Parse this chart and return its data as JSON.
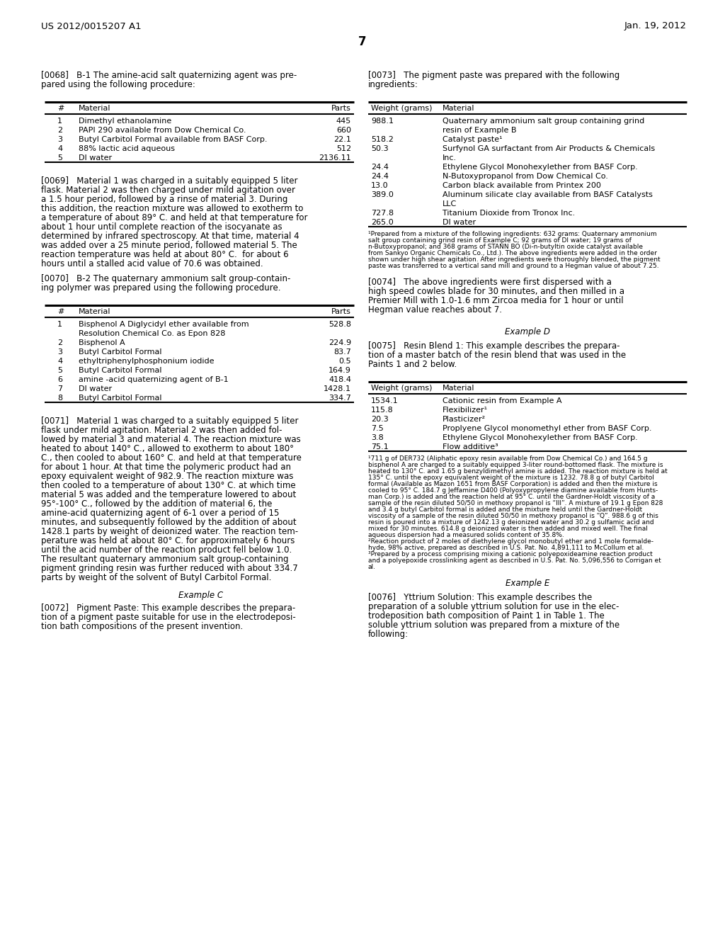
{
  "background_color": "#ffffff",
  "header_left": "US 2012/0015207 A1",
  "header_right": "Jan. 19, 2012",
  "page_number": "7",
  "left_col": {
    "para_068_lines": [
      "[0068]   B-1 The amine-acid salt quaternizing agent was pre-",
      "pared using the following procedure:"
    ],
    "table1_rows": [
      [
        "1",
        "Dimethyl ethanolamine",
        "445"
      ],
      [
        "2",
        "PAPI 290 available from Dow Chemical Co.",
        "660"
      ],
      [
        "3",
        "Butyl Carbitol Formal available from BASF Corp.",
        "22.1"
      ],
      [
        "4",
        "88% lactic acid aqueous",
        "512"
      ],
      [
        "5",
        "DI water",
        "2136.11"
      ]
    ],
    "para_069_lines": [
      "[0069]   Material 1 was charged in a suitably equipped 5 liter",
      "flask. Material 2 was then charged under mild agitation over",
      "a 1.5 hour period, followed by a rinse of material 3. During",
      "this addition, the reaction mixture was allowed to exotherm to",
      "a temperature of about 89° C. and held at that temperature for",
      "about 1 hour until complete reaction of the isocyanate as",
      "determined by infrared spectroscopy. At that time, material 4",
      "was added over a 25 minute period, followed material 5. The",
      "reaction temperature was held at about 80° C.  for about 6",
      "hours until a stalled acid value of 70.6 was obtained."
    ],
    "para_070_lines": [
      "[0070]   B-2 The quaternary ammonium salt group-contain-",
      "ing polymer was prepared using the following procedure."
    ],
    "table2_rows": [
      [
        "1",
        "Bisphenol A Diglycidyl ether available from",
        "528.8",
        "Resolution Chemical Co. as Epon 828"
      ],
      [
        "2",
        "Bisphenol A",
        "224.9",
        ""
      ],
      [
        "3",
        "Butyl Carbitol Formal",
        "83.7",
        ""
      ],
      [
        "4",
        "ethyltriphenylphosphonium iodide",
        "0.5",
        ""
      ],
      [
        "5",
        "Butyl Carbitol Formal",
        "164.9",
        ""
      ],
      [
        "6",
        "amine -acid quaternizing agent of B-1",
        "418.4",
        ""
      ],
      [
        "7",
        "DI water",
        "1428.1",
        ""
      ],
      [
        "8",
        "Butyl Carbitol Formal",
        "334.7",
        ""
      ]
    ],
    "para_071_lines": [
      "[0071]   Material 1 was charged to a suitably equipped 5 liter",
      "flask under mild agitation. Material 2 was then added fol-",
      "lowed by material 3 and material 4. The reaction mixture was",
      "heated to about 140° C., allowed to exotherm to about 180°",
      "C., then cooled to about 160° C. and held at that temperature",
      "for about 1 hour. At that time the polymeric product had an",
      "epoxy equivalent weight of 982.9. The reaction mixture was",
      "then cooled to a temperature of about 130° C. at which time",
      "material 5 was added and the temperature lowered to about",
      "95°-100° C., followed by the addition of material 6, the",
      "amine-acid quaternizing agent of 6-1 over a period of 15",
      "minutes, and subsequently followed by the addition of about",
      "1428.1 parts by weight of deionized water. The reaction tem-",
      "perature was held at about 80° C. for approximately 6 hours",
      "until the acid number of the reaction product fell below 1.0.",
      "The resultant quaternary ammonium salt group-containing",
      "pigment grinding resin was further reduced with about 334.7",
      "parts by weight of the solvent of Butyl Carbitol Formal."
    ],
    "example_c_header": "Example C",
    "para_072_lines": [
      "[0072]   Pigment Paste: This example describes the prepara-",
      "tion of a pigment paste suitable for use in the electrodeposi-",
      "tion bath compositions of the present invention."
    ]
  },
  "right_col": {
    "para_073_lines": [
      "[0073]   The pigment paste was prepared with the following",
      "ingredients:"
    ],
    "table3_rows": [
      [
        "988.1",
        "Quaternary ammonium salt group containing grind",
        "resin of Example B"
      ],
      [
        "518.2",
        "Catalyst paste¹",
        ""
      ],
      [
        "50.3",
        "Surfynol GA surfactant from Air Products & Chemicals",
        "Inc."
      ],
      [
        "24.4",
        "Ethylene Glycol Monohexylether from BASF Corp.",
        ""
      ],
      [
        "24.4",
        "N-Butoxypropanol from Dow Chemical Co.",
        ""
      ],
      [
        "13.0",
        "Carbon black available from Printex 200",
        ""
      ],
      [
        "389.0",
        "Aluminum silicate clay available from BASF Catalysts",
        "LLC"
      ],
      [
        "727.8",
        "Titanium Dioxide from Tronox Inc.",
        ""
      ],
      [
        "265.0",
        "DI water",
        ""
      ]
    ],
    "footnote1_lines": [
      "¹Prepared from a mixture of the following ingredients: 632 grams: Quaternary ammonium",
      "salt group containing grind resin of Example C; 92 grams of DI water; 19 grams of",
      "n-Butoxypropanol; and 368 grams of STANN BO (Di-n-butyltin oxide catalyst available",
      "from Sankyo Organic Chemicals Co., Ltd.). The above ingredients were added in the order",
      "shown under high shear agitation. After ingredients were thoroughly blended, the pigment",
      "paste was transferred to a vertical sand mill and ground to a Hegman value of about 7.25."
    ],
    "para_074_lines": [
      "[0074]   The above ingredients were first dispersed with a",
      "high speed cowles blade for 30 minutes, and then milled in a",
      "Premier Mill with 1.0-1.6 mm Zircoa media for 1 hour or until",
      "Hegman value reaches about 7."
    ],
    "example_d_header": "Example D",
    "para_075_lines": [
      "[0075]   Resin Blend 1: This example describes the prepara-",
      "tion of a master batch of the resin blend that was used in the",
      "Paints 1 and 2 below."
    ],
    "table4_rows": [
      [
        "1534.1",
        "Cationic resin from Example A"
      ],
      [
        "115.8",
        "Flexibilizer¹"
      ],
      [
        "20.3",
        "Plasticizer²"
      ],
      [
        "7.5",
        "Proplyene Glycol monomethyl ether from BASF Corp."
      ],
      [
        "3.8",
        "Ethylene Glycol Monohexylether from BASF Corp."
      ],
      [
        "75.1",
        "Flow additive³"
      ]
    ],
    "footnote2_lines": [
      "¹711 g of DER732 (Aliphatic epoxy resin available from Dow Chemical Co.) and 164.5 g",
      "bisphenol A are charged to a suitably equipped 3-liter round-bottomed flask. The mixture is",
      "heated to 130° C. and 1.65 g benzyldimethyl amine is added. The reaction mixture is held at",
      "135° C. until the epoxy equivalent weight of the mixture is 1232. 78.8 g of butyl Carbitol",
      "formal (Available as Mazon 1651 from BASF Corporation) is added and then the mixture is",
      "cooled to 95° C. 184.7 g Jeffamine D400 (Polyoxypropylene diamine available from Hunts-",
      "man Corp.) is added and the reaction held at 95° C. until the Gardner-Holdt viscosity of a",
      "sample of the resin diluted 50/50 in methoxy propanol is “III”. A mixture of 19.1 g Epon 828",
      "and 3.4 g butyl Carbitol formal is added and the mixture held until the Gardner-Holdt",
      "viscosity of a sample of the resin diluted 50/50 in methoxy propanol is “Q”. 988.6 g of this",
      "resin is poured into a mixture of 1242.13 g deionized water and 30.2 g sulfamic acid and",
      "mixed for 30 minutes. 614.8 g deionized water is then added and mixed well. The final",
      "aqueous dispersion had a measured solids content of 35.8%.",
      "²Reaction product of 2 moles of diethylene glycol monobutyl ether and 1 mole formalde-",
      "hyde, 98% active, prepared as described in U.S. Pat. No. 4,891,111 to McCollum et al.",
      "³Prepared by a process comprising mixing a cationic polyepoxideamine reaction product",
      "and a polyepoxide crosslinking agent as described in U.S. Pat. No. 5,096,556 to Corrigan et",
      "al."
    ],
    "example_e_header": "Example E",
    "para_076_lines": [
      "[0076]   Yttrium Solution: This example describes the",
      "preparation of a soluble yttrium solution for use in the elec-",
      "trodeposition bath composition of Paint 1 in Table 1. The",
      "soluble yttrium solution was prepared from a mixture of the",
      "following:"
    ]
  }
}
